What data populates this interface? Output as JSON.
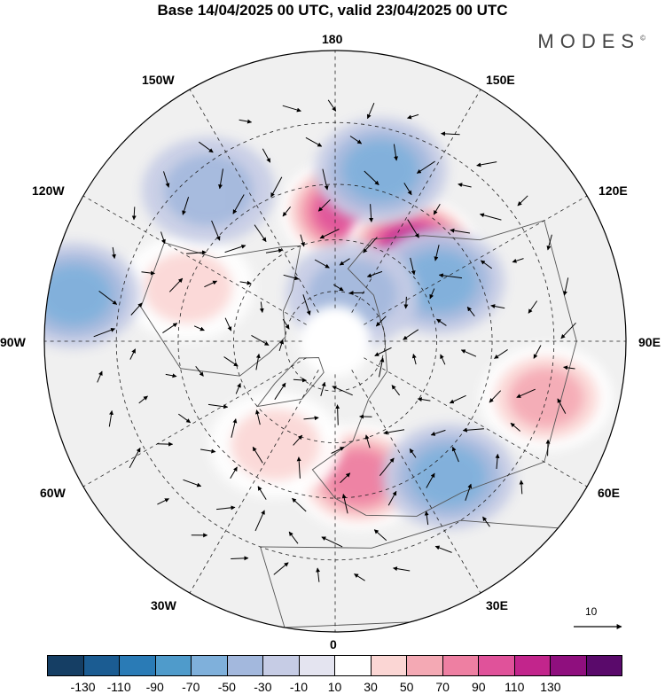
{
  "title": "Base 14/04/2025 00 UTC, valid 23/04/2025 00 UTC",
  "brand": "MODES",
  "brand_mark": "©",
  "longitude_labels": {
    "lon_180": "180",
    "lon_150e": "150E",
    "lon_120e": "120E",
    "lon_90e": "90E",
    "lon_60e": "60E",
    "lon_30e": "30E",
    "lon_0": "0",
    "lon_30w": "30W",
    "lon_60w": "60W",
    "lon_90w": "90W",
    "lon_120w": "120W",
    "lon_150w": "150W"
  },
  "vector_key": {
    "value": "10"
  },
  "colorbar": {
    "colors": [
      "#153e64",
      "#1b5c92",
      "#2a7bb6",
      "#4f9bcb",
      "#7fb0db",
      "#a3b8dd",
      "#c6cce5",
      "#e4e4f0",
      "#ffffff",
      "#fbd6d4",
      "#f4a9b4",
      "#ee7fa2",
      "#e0529a",
      "#c2258c",
      "#8f0f7e",
      "#5a0a6b"
    ],
    "ticks": [
      "-130",
      "-110",
      "-90",
      "-70",
      "-50",
      "-30",
      "-10",
      "10",
      "30",
      "50",
      "70",
      "90",
      "110",
      "130"
    ]
  },
  "chart_data": {
    "type": "polar-map",
    "projection": "north polar stereographic",
    "variable": "anomaly field with wind vectors",
    "base_time": "14/04/2025 00 UTC",
    "valid_time": "23/04/2025 00 UTC",
    "anomaly_centers": [
      {
        "lon": 175,
        "lat": 52,
        "value": 90,
        "sign": "positive"
      },
      {
        "lon": 140,
        "lat": 55,
        "value": 110,
        "sign": "positive"
      },
      {
        "lon": 10,
        "lat": 50,
        "value": 70,
        "sign": "positive"
      },
      {
        "lon": 75,
        "lat": 30,
        "value": 50,
        "sign": "positive"
      },
      {
        "lon": -110,
        "lat": 45,
        "value": 40,
        "sign": "positive"
      },
      {
        "lon": -30,
        "lat": 55,
        "value": 40,
        "sign": "positive"
      },
      {
        "lon": 165,
        "lat": 40,
        "value": -50,
        "sign": "negative"
      },
      {
        "lon": 120,
        "lat": 55,
        "value": -50,
        "sign": "negative"
      },
      {
        "lon": 40,
        "lat": 40,
        "value": -60,
        "sign": "negative"
      },
      {
        "lon": -100,
        "lat": 20,
        "value": -50,
        "sign": "negative"
      },
      {
        "lon": -140,
        "lat": 35,
        "value": -40,
        "sign": "negative"
      },
      {
        "lon": 160,
        "lat": 75,
        "value": -40,
        "sign": "negative"
      }
    ]
  }
}
